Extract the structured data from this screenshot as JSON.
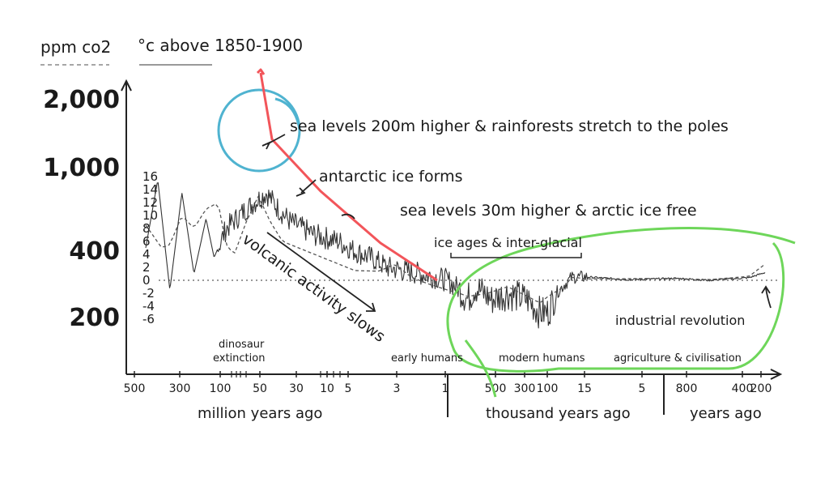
{
  "chart_data": {
    "type": "line",
    "axis_units": {
      "co2": "ppm co2",
      "temperature": "°c above 1850-1900"
    },
    "co2_ticks": [
      "2,000",
      "1,000",
      "400",
      "200"
    ],
    "temperature_ticks": [
      "16",
      "14",
      "12",
      "10",
      "8",
      "6",
      "4",
      "2",
      "0",
      "-2",
      "-4",
      "-6"
    ],
    "x_groups": [
      {
        "label": "million years ago",
        "ticks": [
          "500",
          "300",
          "100",
          "50",
          "30",
          "10",
          "5",
          "3",
          "1"
        ]
      },
      {
        "label": "thousand years ago",
        "ticks": [
          "500",
          "300",
          "100",
          "15",
          "5"
        ]
      },
      {
        "label": "years ago",
        "ticks": [
          "800",
          "400",
          "200"
        ]
      }
    ],
    "era_labels": [
      "dinosaur extinction",
      "early humans",
      "modern humans",
      "agriculture & civilisation"
    ],
    "annotations": [
      "sea levels 200m higher & rainforests stretch to the poles",
      "antarctic ice forms",
      "sea levels 30m higher & arctic ice free",
      "volcanic activity slows",
      "ice ages & inter-glacial",
      "industrial revolution"
    ],
    "series": [
      {
        "name": "°c above 1850-1900",
        "style": "solid",
        "color": "#333333",
        "anchors": [
          [
            0.0,
            5
          ],
          [
            0.03,
            15.5
          ],
          [
            0.06,
            -1.5
          ],
          [
            0.09,
            13.5
          ],
          [
            0.12,
            1
          ],
          [
            0.15,
            9.5
          ],
          [
            0.17,
            3.5
          ],
          [
            0.2,
            8
          ],
          [
            0.25,
            11
          ],
          [
            0.3,
            13.5
          ],
          [
            0.33,
            11
          ],
          [
            0.36,
            9
          ],
          [
            0.42,
            7
          ],
          [
            0.48,
            6
          ],
          [
            0.52,
            4.5
          ],
          [
            0.56,
            3.5
          ],
          [
            0.6,
            2
          ],
          [
            0.65,
            1.4
          ],
          [
            0.7,
            0.8
          ],
          [
            0.75,
            0
          ],
          [
            0.782,
            -1.5
          ],
          [
            0.8,
            -3
          ],
          [
            0.82,
            -1
          ],
          [
            0.86,
            -3
          ],
          [
            0.9,
            -2
          ],
          [
            0.95,
            -3
          ],
          [
            0.98,
            -5
          ],
          [
            1.0,
            -5
          ],
          [
            1.02,
            -2
          ],
          [
            1.06,
            0.5
          ],
          [
            1.1,
            0.5
          ],
          [
            1.2,
            0.1
          ],
          [
            1.32,
            0.3
          ],
          [
            1.4,
            0
          ],
          [
            1.5,
            0.4
          ],
          [
            1.54,
            1.2
          ]
        ]
      },
      {
        "name": "ppm co2",
        "style": "dashed",
        "color": "#555555",
        "anchors": [
          [
            0.0,
            8.5
          ],
          [
            0.04,
            5
          ],
          [
            0.06,
            5.5
          ],
          [
            0.09,
            10
          ],
          [
            0.12,
            8
          ],
          [
            0.15,
            11
          ],
          [
            0.18,
            12
          ],
          [
            0.2,
            5.5
          ],
          [
            0.22,
            4
          ],
          [
            0.25,
            9
          ],
          [
            0.28,
            13
          ],
          [
            0.31,
            9
          ],
          [
            0.34,
            6
          ],
          [
            0.4,
            4.5
          ],
          [
            0.46,
            3
          ],
          [
            0.52,
            1.5
          ],
          [
            0.58,
            1.4
          ],
          [
            0.62,
            2.5
          ],
          [
            0.66,
            0.5
          ],
          [
            0.7,
            -0.5
          ],
          [
            0.75,
            -1.5
          ],
          [
            0.78,
            -2
          ],
          [
            0.8,
            -2.5
          ],
          [
            0.85,
            -2
          ],
          [
            0.9,
            -1
          ],
          [
            0.95,
            -2.5
          ],
          [
            0.98,
            -3.5
          ],
          [
            1.0,
            -2.5
          ],
          [
            1.04,
            -1
          ],
          [
            1.06,
            0.5
          ],
          [
            1.1,
            0.2
          ],
          [
            1.3,
            0.3
          ],
          [
            1.4,
            0.1
          ],
          [
            1.5,
            0.6
          ],
          [
            1.54,
            2.5
          ]
        ]
      }
    ],
    "highlight_colors": {
      "blue_circle": "#4fb3d0",
      "red_trend": "#f2555a",
      "green_loop": "#6ed65a"
    }
  }
}
